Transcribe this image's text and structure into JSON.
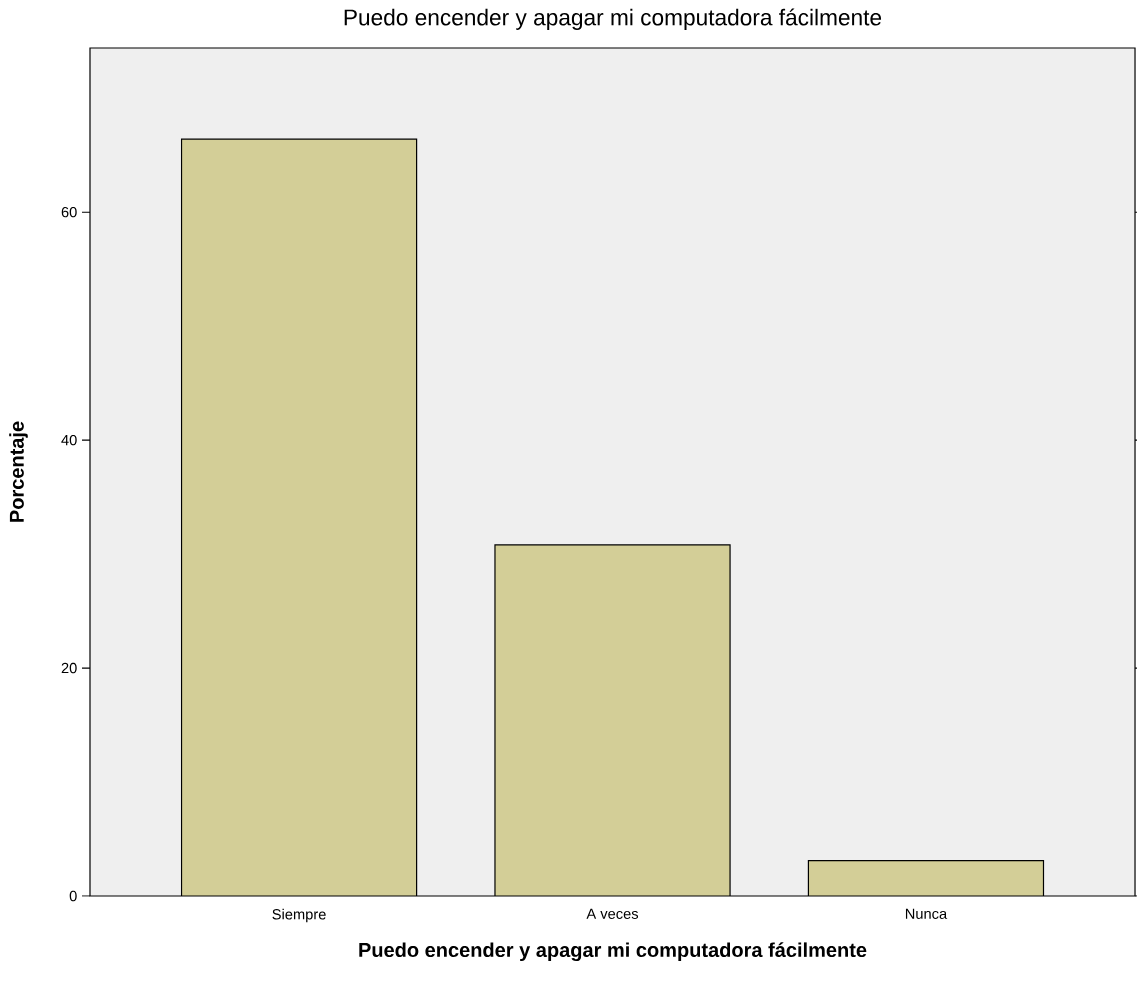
{
  "chart_data": {
    "type": "bar",
    "title": "Puedo encender y apagar mi computadora fácilmente",
    "xlabel": "Puedo encender y apagar mi computadora fácilmente",
    "ylabel": "Porcentaje",
    "categories": [
      "Siempre",
      "A veces",
      "Nunca"
    ],
    "values": [
      66.4,
      30.8,
      3.1
    ],
    "color": "#d3ce97",
    "ylim": [
      0,
      74.4
    ],
    "yticks": [
      0,
      20,
      40,
      60
    ]
  }
}
